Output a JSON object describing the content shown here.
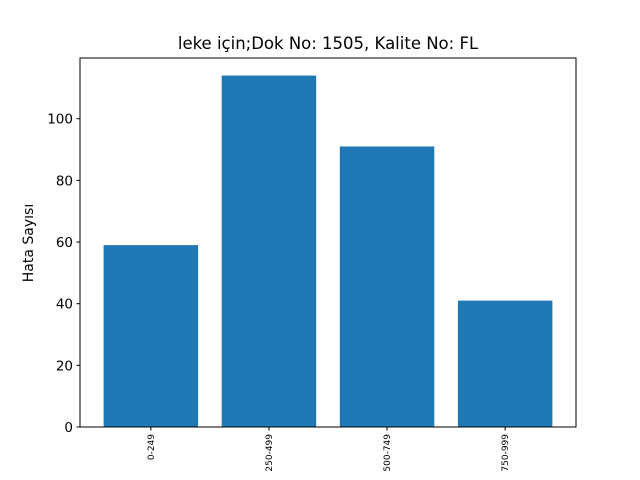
{
  "chart_data": {
    "type": "bar",
    "title": "leke için;Dok No: 1505, Kalite No: FL",
    "xlabel": "",
    "ylabel": "Hata Sayısı",
    "categories": [
      "0-249",
      "250-499",
      "500-749",
      "750-999"
    ],
    "values": [
      59,
      114,
      91,
      41
    ],
    "ylim": [
      0,
      119.7
    ],
    "yticks": [
      0,
      20,
      40,
      60,
      80,
      100
    ],
    "bar_color": "#1f77b4",
    "grid": false,
    "legend": "none"
  }
}
